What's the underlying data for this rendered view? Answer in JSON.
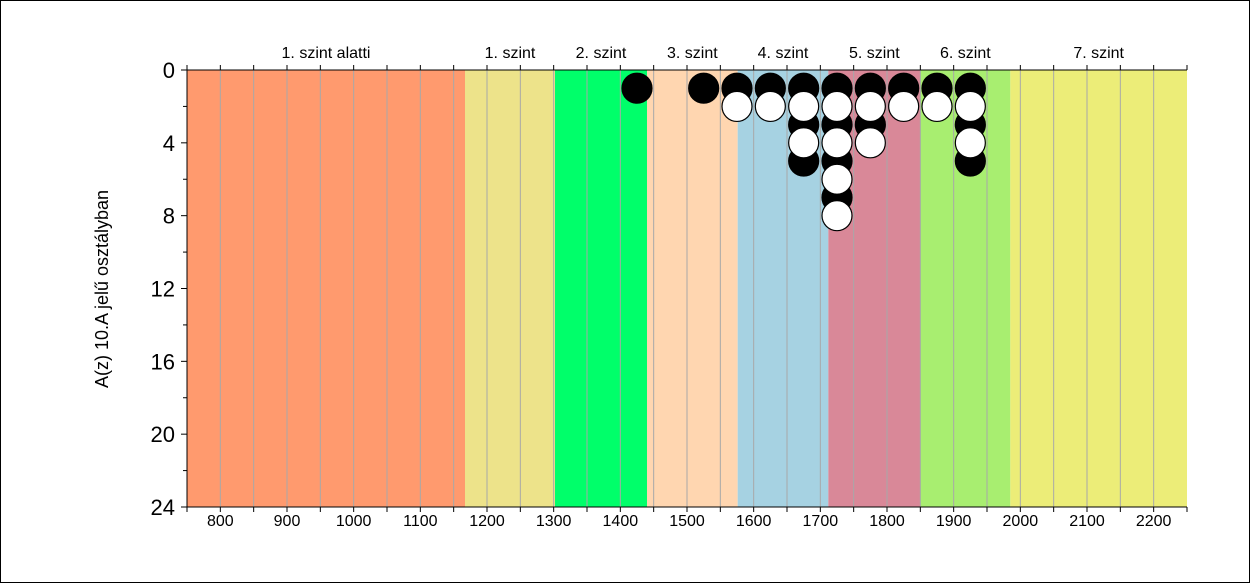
{
  "chart_data": {
    "type": "scatter",
    "ylabel": "A(z) 10.A jelű osztályban",
    "xlabel": "",
    "xlim": [
      750,
      2250
    ],
    "ylim": [
      0,
      24
    ],
    "y_inverted": true,
    "x_ticks": [
      800,
      900,
      1000,
      1100,
      1200,
      1300,
      1400,
      1500,
      1600,
      1700,
      1800,
      1900,
      2000,
      2100,
      2200
    ],
    "y_ticks": [
      0,
      4,
      8,
      12,
      16,
      20,
      24
    ],
    "bands": [
      {
        "label": "1. szint alatti",
        "from": 750,
        "to": 1167,
        "color": "#ff9a6e"
      },
      {
        "label": "1. szint",
        "from": 1167,
        "to": 1302,
        "color": "#ede38a"
      },
      {
        "label": "2. szint",
        "from": 1302,
        "to": 1440,
        "color": "#00ff6a"
      },
      {
        "label": "3. szint",
        "from": 1440,
        "to": 1576,
        "color": "#ffd6b0"
      },
      {
        "label": "4. szint",
        "from": 1576,
        "to": 1712,
        "color": "#a6d2e2"
      },
      {
        "label": "5. szint",
        "from": 1712,
        "to": 1850,
        "color": "#d98898"
      },
      {
        "label": "6. szint",
        "from": 1850,
        "to": 1985,
        "color": "#a8ee70"
      },
      {
        "label": "7. szint",
        "from": 1985,
        "to": 2250,
        "color": "#eced78"
      }
    ],
    "series": [
      {
        "color": "#000000",
        "points": [
          [
            1425,
            1
          ],
          [
            1525,
            1
          ],
          [
            1575,
            1
          ],
          [
            1625,
            1
          ],
          [
            1675,
            1
          ],
          [
            1675,
            3
          ],
          [
            1675,
            5
          ],
          [
            1725,
            1
          ],
          [
            1725,
            3
          ],
          [
            1725,
            5
          ],
          [
            1725,
            7
          ],
          [
            1775,
            1
          ],
          [
            1775,
            3
          ],
          [
            1825,
            1
          ],
          [
            1875,
            1
          ],
          [
            1925,
            1
          ],
          [
            1925,
            3
          ],
          [
            1925,
            5
          ]
        ]
      },
      {
        "color": "#ffffff",
        "points": [
          [
            1575,
            2
          ],
          [
            1625,
            2
          ],
          [
            1675,
            2
          ],
          [
            1675,
            4
          ],
          [
            1725,
            2
          ],
          [
            1725,
            4
          ],
          [
            1725,
            6
          ],
          [
            1725,
            8
          ],
          [
            1775,
            2
          ],
          [
            1775,
            4
          ],
          [
            1825,
            2
          ],
          [
            1875,
            2
          ],
          [
            1925,
            2
          ],
          [
            1925,
            4
          ]
        ]
      }
    ]
  }
}
